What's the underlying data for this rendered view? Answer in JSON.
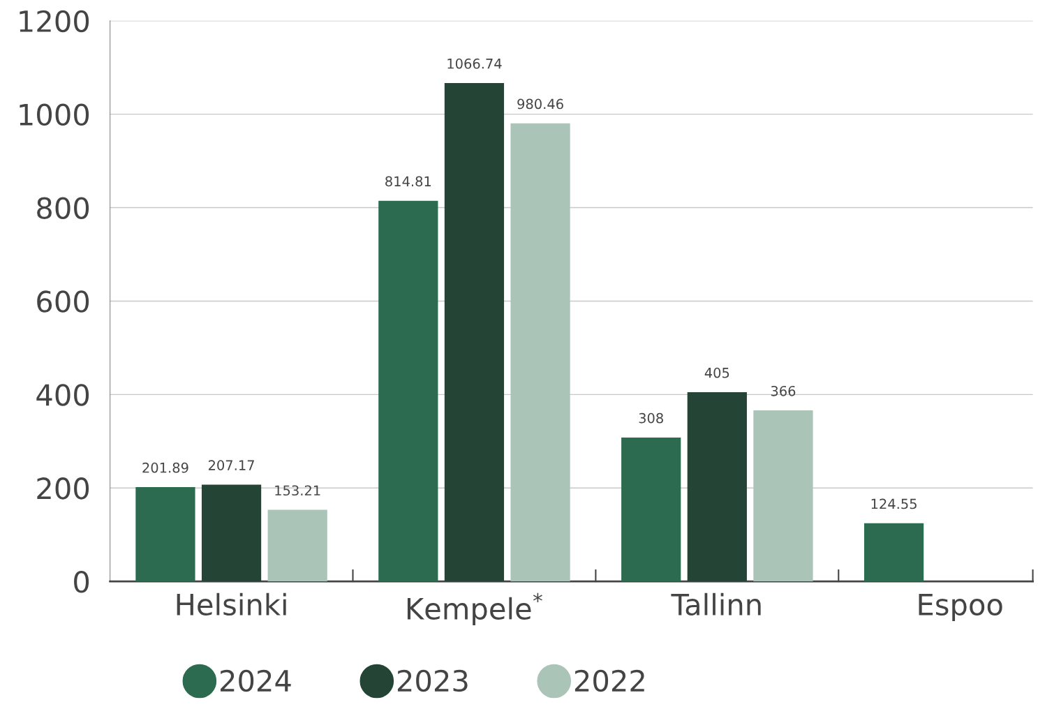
{
  "chart_data": {
    "type": "bar",
    "categories": [
      "Helsinki",
      "Kempele$^{*}$",
      "Tallinn",
      "Espoo"
    ],
    "series": [
      {
        "name": "2024",
        "color": "#2d6b50",
        "values": [
          201.89,
          814.81,
          308,
          124.55
        ]
      },
      {
        "name": "2023",
        "color": "#244535",
        "values": [
          207.17,
          1066.74,
          405,
          null
        ]
      },
      {
        "name": "2022",
        "color": "#abc4b8",
        "values": [
          153.21,
          980.46,
          366,
          null
        ]
      }
    ],
    "ylim": [
      0,
      1200
    ],
    "yticks": [
      0,
      200,
      400,
      600,
      800,
      1000,
      1200
    ],
    "grid": "y",
    "legend": "bottom",
    "marker": "circle",
    "data_labels": true
  }
}
